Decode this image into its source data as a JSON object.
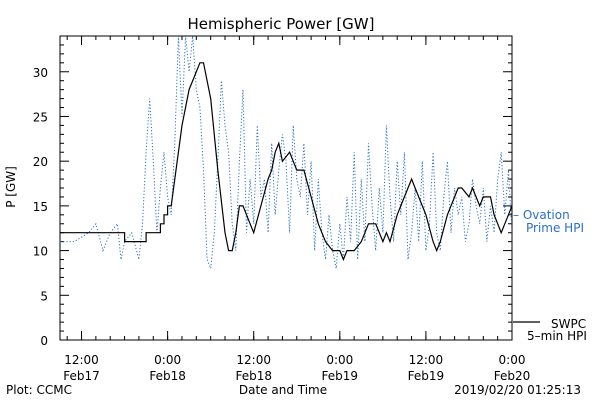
{
  "chart_data": {
    "type": "line",
    "title": "Hemispheric Power [GW]",
    "ylabel": "P [GW]",
    "xlabel": "Date and Time",
    "ylim": [
      0,
      34
    ],
    "xlim_hours": [
      -39,
      24
    ],
    "yticks": [
      "0",
      "5",
      "10",
      "15",
      "20",
      "25",
      "30"
    ],
    "yticks_values": [
      0,
      5,
      10,
      15,
      20,
      25,
      30
    ],
    "xticks": [
      {
        "t": -36,
        "time": "12:00",
        "date": "Feb17"
      },
      {
        "t": -24,
        "time": "0:00",
        "date": "Feb18"
      },
      {
        "t": -12,
        "time": "12:00",
        "date": "Feb18"
      },
      {
        "t": 0,
        "time": "0:00",
        "date": "Feb19"
      },
      {
        "t": 12,
        "time": "12:00",
        "date": "Feb19"
      },
      {
        "t": 24,
        "time": "0:00",
        "date": "Feb20"
      }
    ],
    "grid": false,
    "series": [
      {
        "name": "SWPC 5-min HPI",
        "color": "#000000",
        "style": "solid",
        "points": [
          [
            -39,
            12
          ],
          [
            -30,
            12
          ],
          [
            -30,
            11
          ],
          [
            -27,
            11
          ],
          [
            -27,
            12
          ],
          [
            -25,
            12
          ],
          [
            -25,
            13
          ],
          [
            -24.5,
            13
          ],
          [
            -24.5,
            14
          ],
          [
            -24,
            14
          ],
          [
            -24,
            15
          ],
          [
            -23.5,
            15
          ],
          [
            -23,
            18
          ],
          [
            -22,
            24
          ],
          [
            -21,
            28
          ],
          [
            -20,
            30
          ],
          [
            -19.5,
            31
          ],
          [
            -19,
            31
          ],
          [
            -18,
            27
          ],
          [
            -17,
            19
          ],
          [
            -16,
            12
          ],
          [
            -15.5,
            10
          ],
          [
            -15,
            10
          ],
          [
            -14.5,
            12
          ],
          [
            -14,
            15
          ],
          [
            -13.5,
            15
          ],
          [
            -13,
            14
          ],
          [
            -12,
            12
          ],
          [
            -11,
            15
          ],
          [
            -10,
            18
          ],
          [
            -9.5,
            19
          ],
          [
            -9,
            21
          ],
          [
            -8.5,
            22
          ],
          [
            -8,
            20
          ],
          [
            -7,
            21
          ],
          [
            -6.5,
            20
          ],
          [
            -6,
            19
          ],
          [
            -5,
            19
          ],
          [
            -4,
            16
          ],
          [
            -3,
            13
          ],
          [
            -2,
            11
          ],
          [
            -1,
            10
          ],
          [
            0,
            10
          ],
          [
            0.5,
            9
          ],
          [
            1,
            10
          ],
          [
            2,
            10
          ],
          [
            3,
            11
          ],
          [
            4,
            13
          ],
          [
            5,
            13
          ],
          [
            6,
            11
          ],
          [
            6.5,
            12
          ],
          [
            7,
            11
          ],
          [
            8,
            14
          ],
          [
            9,
            16
          ],
          [
            10,
            18
          ],
          [
            11,
            16
          ],
          [
            12,
            14
          ],
          [
            13,
            11
          ],
          [
            13.5,
            10
          ],
          [
            14,
            11
          ],
          [
            15,
            14
          ],
          [
            16,
            16
          ],
          [
            16.5,
            17
          ],
          [
            17,
            17
          ],
          [
            18,
            16
          ],
          [
            18.5,
            17
          ],
          [
            19,
            16
          ],
          [
            19.5,
            15
          ],
          [
            20,
            16
          ],
          [
            21,
            16
          ],
          [
            21.5,
            14
          ],
          [
            22,
            13
          ],
          [
            22.5,
            12
          ],
          [
            23,
            13
          ],
          [
            24,
            15
          ],
          [
            25,
            16
          ],
          [
            26,
            16
          ]
        ]
      },
      {
        "name": "Ovation Prime HPI",
        "color": "#2a6fc9",
        "style": "dotted",
        "points": [
          [
            -39,
            11
          ],
          [
            -37,
            11
          ],
          [
            -35,
            12
          ],
          [
            -34,
            13
          ],
          [
            -33,
            10
          ],
          [
            -32,
            12
          ],
          [
            -31,
            13
          ],
          [
            -30.5,
            9
          ],
          [
            -30,
            11
          ],
          [
            -29,
            12
          ],
          [
            -28,
            9
          ],
          [
            -27.5,
            13
          ],
          [
            -27,
            21
          ],
          [
            -26.5,
            27
          ],
          [
            -26,
            20
          ],
          [
            -25.5,
            12
          ],
          [
            -25,
            17
          ],
          [
            -24.5,
            21
          ],
          [
            -24,
            16
          ],
          [
            -23.5,
            14
          ],
          [
            -23,
            22
          ],
          [
            -22.5,
            34
          ],
          [
            -22,
            25
          ],
          [
            -21.5,
            34
          ],
          [
            -21,
            30
          ],
          [
            -20.5,
            34
          ],
          [
            -20,
            28
          ],
          [
            -19.5,
            26
          ],
          [
            -19,
            19
          ],
          [
            -18.5,
            9
          ],
          [
            -18,
            8
          ],
          [
            -17.5,
            12
          ],
          [
            -17,
            20
          ],
          [
            -16.5,
            29
          ],
          [
            -16,
            24
          ],
          [
            -15.5,
            21
          ],
          [
            -15,
            13
          ],
          [
            -14.5,
            10
          ],
          [
            -14,
            20
          ],
          [
            -13.5,
            28
          ],
          [
            -13,
            12
          ],
          [
            -12.5,
            18
          ],
          [
            -12,
            13
          ],
          [
            -11.5,
            24
          ],
          [
            -11,
            16
          ],
          [
            -10.5,
            18
          ],
          [
            -10,
            12
          ],
          [
            -9.5,
            22
          ],
          [
            -9,
            14
          ],
          [
            -8.5,
            19
          ],
          [
            -8,
            23
          ],
          [
            -7.5,
            20
          ],
          [
            -7,
            12
          ],
          [
            -6.5,
            24
          ],
          [
            -6,
            18
          ],
          [
            -5.5,
            16
          ],
          [
            -5,
            22
          ],
          [
            -4.5,
            14
          ],
          [
            -4,
            20
          ],
          [
            -3.5,
            10
          ],
          [
            -3,
            18
          ],
          [
            -2.5,
            12
          ],
          [
            -2,
            9
          ],
          [
            -1.5,
            14
          ],
          [
            -1,
            10
          ],
          [
            -0.5,
            8
          ],
          [
            0,
            13
          ],
          [
            0.5,
            9
          ],
          [
            1,
            16
          ],
          [
            1.5,
            11
          ],
          [
            2,
            21
          ],
          [
            2.5,
            9
          ],
          [
            3,
            18
          ],
          [
            3.5,
            11
          ],
          [
            4,
            22
          ],
          [
            4.5,
            15
          ],
          [
            5,
            10
          ],
          [
            5.5,
            17
          ],
          [
            6,
            12
          ],
          [
            6.5,
            24
          ],
          [
            7,
            16
          ],
          [
            7.5,
            11
          ],
          [
            8,
            20
          ],
          [
            8.5,
            14
          ],
          [
            9,
            21
          ],
          [
            9.5,
            9
          ],
          [
            10,
            12
          ],
          [
            10.5,
            17
          ],
          [
            11,
            11
          ],
          [
            11.5,
            20
          ],
          [
            12,
            10
          ],
          [
            12.5,
            13
          ],
          [
            13,
            21
          ],
          [
            13.5,
            12
          ],
          [
            14,
            10
          ],
          [
            14.5,
            16
          ],
          [
            15,
            20
          ],
          [
            15.5,
            12
          ],
          [
            16,
            17
          ],
          [
            16.5,
            14
          ],
          [
            17,
            16
          ],
          [
            17.5,
            11
          ],
          [
            18,
            13
          ],
          [
            18.5,
            18
          ],
          [
            19,
            15
          ],
          [
            19.5,
            13
          ],
          [
            20,
            17
          ],
          [
            20.5,
            11
          ],
          [
            21,
            15
          ],
          [
            21.5,
            12
          ],
          [
            22,
            18
          ],
          [
            22.5,
            21
          ],
          [
            23,
            14
          ],
          [
            23.5,
            19
          ],
          [
            24,
            12
          ],
          [
            24.5,
            15
          ],
          [
            25,
            11
          ],
          [
            25.5,
            10
          ],
          [
            26,
            12
          ]
        ]
      }
    ],
    "legend": [
      {
        "lines": [
          "– Ovation",
          "Prime HPI"
        ],
        "color": "#2a6fc9"
      },
      {
        "lines": [
          "SWPC",
          "5–min HPI"
        ],
        "color": "#000000"
      }
    ],
    "footer_left": "Plot: CCMC",
    "footer_right": "2019/02/20 01:25:13"
  }
}
